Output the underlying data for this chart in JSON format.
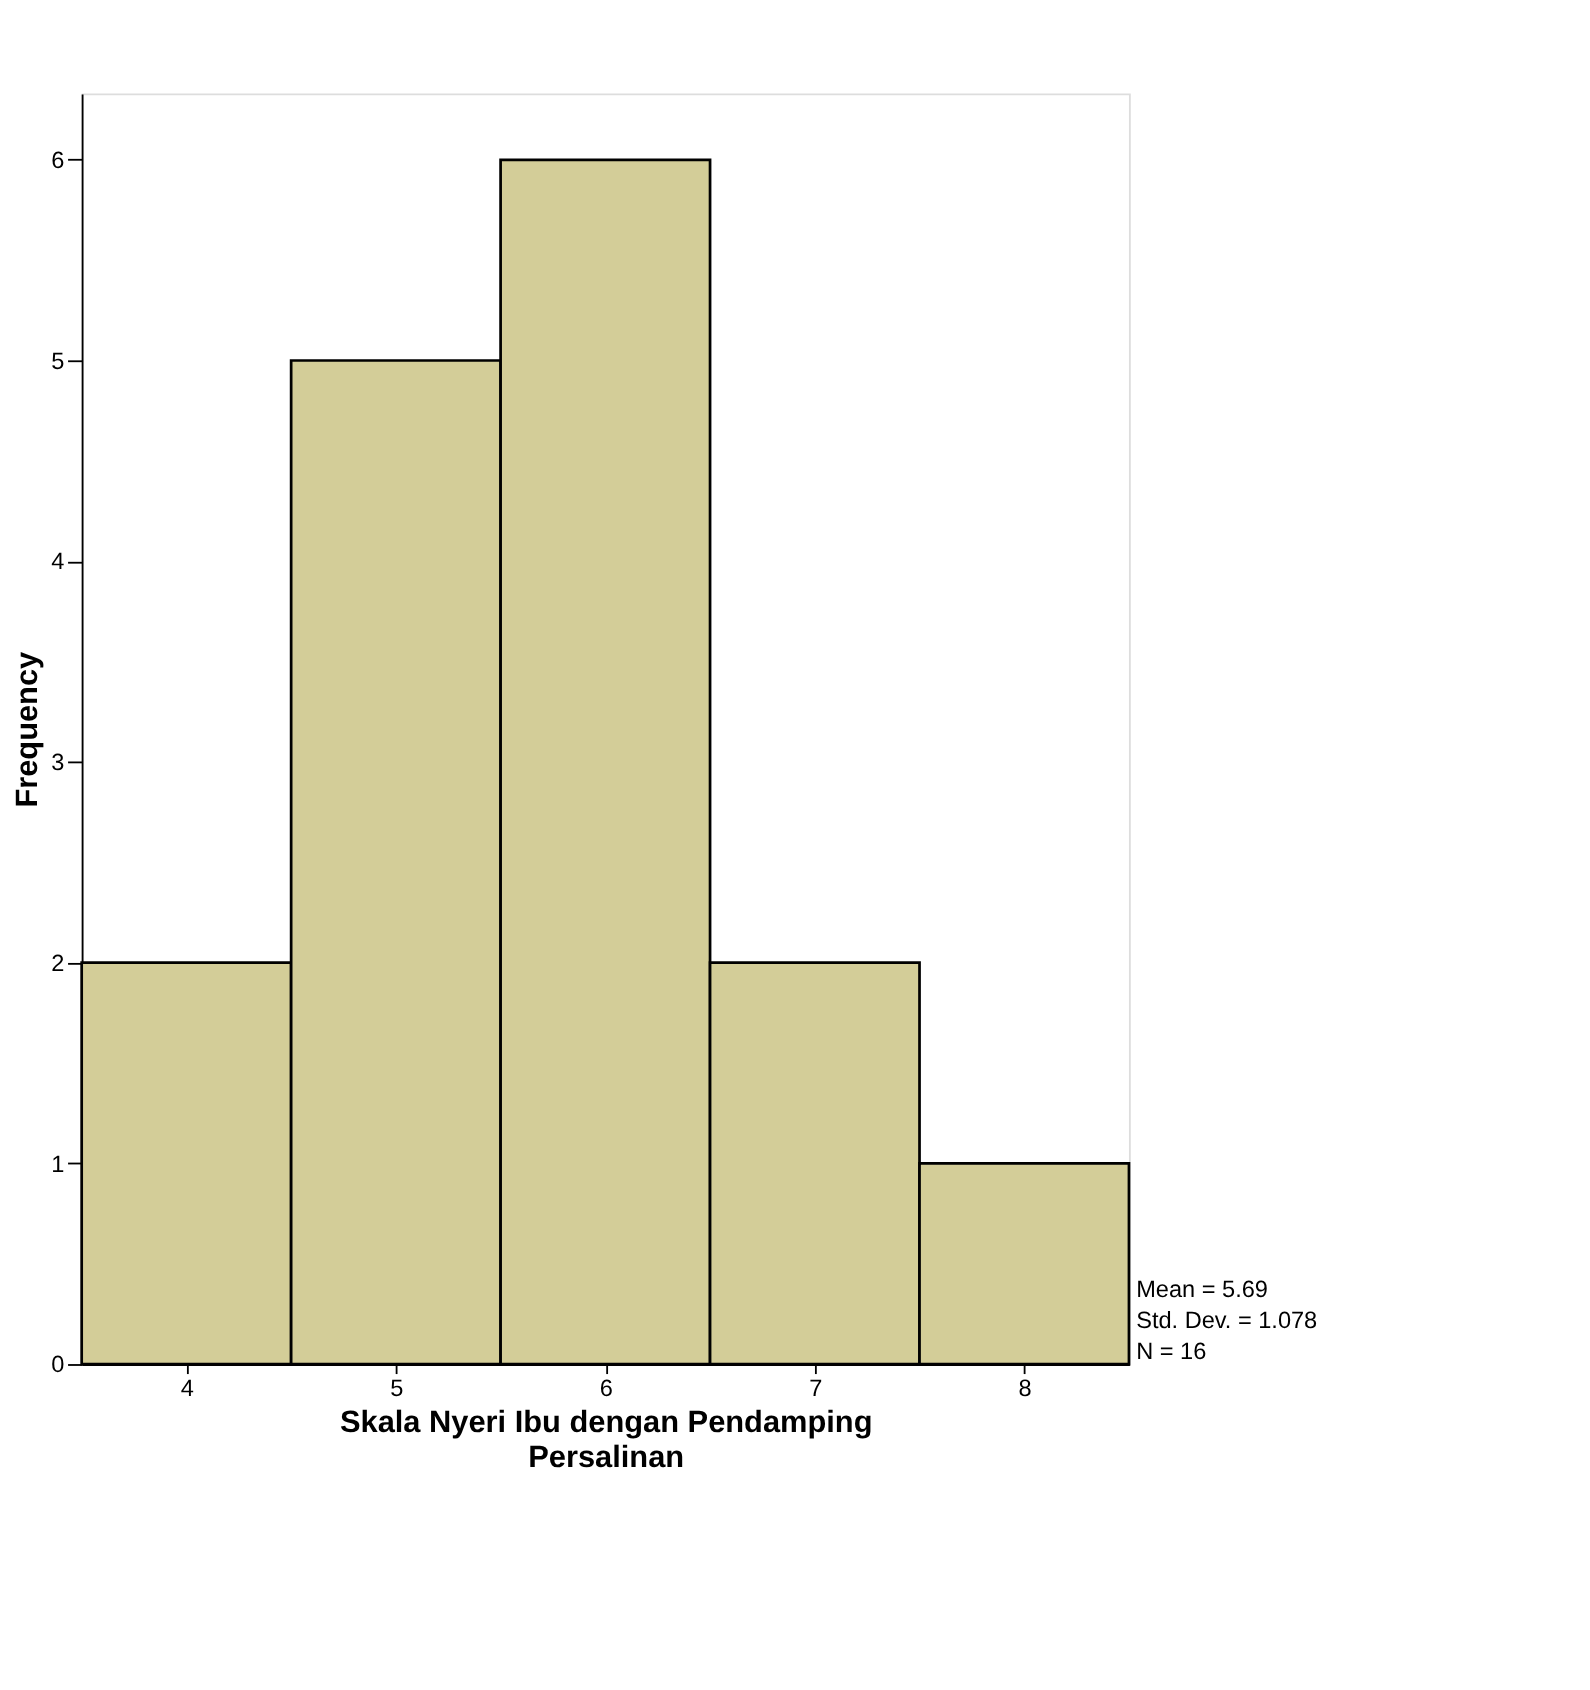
{
  "chart_data": {
    "type": "histogram",
    "xlabel": "Skala Nyeri Ibu dengan Pendamping Persalinan",
    "ylabel": "Frequency",
    "bins": [
      3.5,
      4.5,
      5.5,
      6.5,
      7.5,
      8.5
    ],
    "values": [
      2,
      5,
      6,
      2,
      1
    ],
    "color": "#d3cd98",
    "xlim": [
      3.5,
      8.5
    ],
    "xticks": [
      4,
      5,
      6,
      7,
      8
    ],
    "ylim": [
      0,
      6.33
    ],
    "yticks": [
      0,
      1,
      2,
      3,
      4,
      5,
      6
    ],
    "grid": false,
    "annotations": [
      "Mean = 5.69",
      "Std. Dev. = 1.078",
      "N = 16"
    ]
  }
}
